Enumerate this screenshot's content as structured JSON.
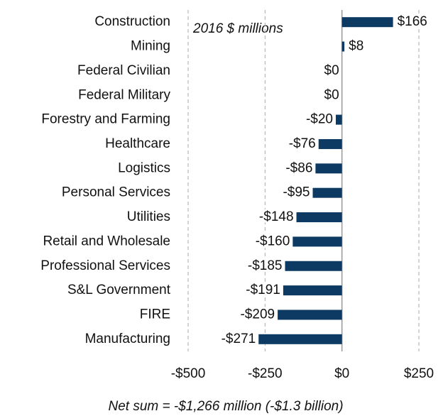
{
  "chart_data": {
    "type": "hbar",
    "annotation": "2016 $ millions",
    "footnote": "Net sum = -$1,266 million (-$1.3 billion)",
    "categories": [
      "Construction",
      "Mining",
      "Federal Civilian",
      "Federal Military",
      "Forestry and Farming",
      "Healthcare",
      "Logistics",
      "Personal Services",
      "Utilities",
      "Retail and Wholesale",
      "Professional Services",
      "S&L Government",
      "FIRE",
      "Manufacturing"
    ],
    "values": [
      166,
      8,
      0,
      0,
      -20,
      -76,
      -86,
      -95,
      -148,
      -160,
      -185,
      -191,
      -209,
      -271
    ],
    "value_labels": [
      "$166",
      "$8",
      "$0",
      "$0",
      "-$20",
      "-$76",
      "-$86",
      "-$95",
      "-$148",
      "-$160",
      "-$185",
      "-$191",
      "-$209",
      "-$271"
    ],
    "color": "#0d3a63",
    "xlim": [
      -500,
      250
    ],
    "xticks": [
      {
        "value": -500,
        "label": "-$500"
      },
      {
        "value": -250,
        "label": "-$250"
      },
      {
        "value": 0,
        "label": "$0"
      },
      {
        "value": 250,
        "label": "$250"
      }
    ],
    "grid": true
  }
}
